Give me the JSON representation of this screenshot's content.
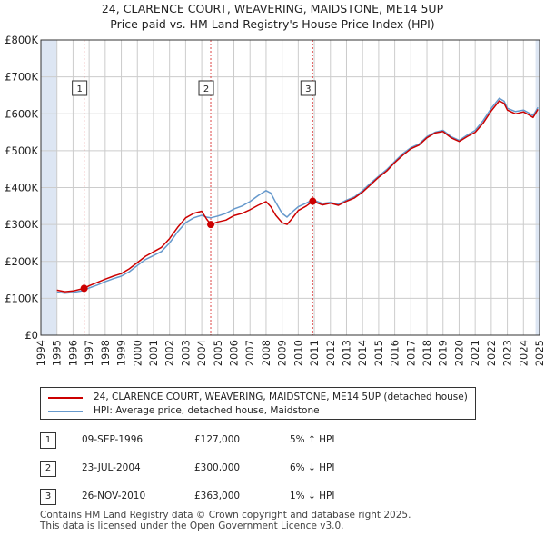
{
  "title": {
    "line1": "24, CLARENCE COURT, WEAVERING, MAIDSTONE, ME14 5UP",
    "line2": "Price paid vs. HM Land Registry's House Price Index (HPI)"
  },
  "colors": {
    "property_line": "#cc0000",
    "hpi_line": "#6699cc",
    "shade": "#dde6f3",
    "marker_line": "#dd4444",
    "grid": "#cccccc"
  },
  "legend": {
    "property_label": "24, CLARENCE COURT, WEAVERING, MAIDSTONE, ME14 5UP (detached house)",
    "hpi_label": "HPI: Average price, detached house, Maidstone"
  },
  "transactions": [
    {
      "num": "1",
      "date": "09-SEP-1996",
      "price": "£127,000",
      "hpi": "5% ↑ HPI"
    },
    {
      "num": "2",
      "date": "23-JUL-2004",
      "price": "£300,000",
      "hpi": "6% ↓ HPI"
    },
    {
      "num": "3",
      "date": "26-NOV-2010",
      "price": "£363,000",
      "hpi": "1% ↓ HPI"
    }
  ],
  "footer": {
    "line1": "Contains HM Land Registry data © Crown copyright and database right 2025.",
    "line2": "This data is licensed under the Open Government Licence v3.0."
  },
  "chart_data": {
    "type": "line",
    "title": "24, CLARENCE COURT, WEAVERING, MAIDSTONE, ME14 5UP",
    "subtitle": "Price paid vs. HM Land Registry's House Price Index (HPI)",
    "xlabel": "",
    "ylabel": "",
    "xlim": [
      1994,
      2025
    ],
    "ylim": [
      0,
      800000
    ],
    "x_ticks": [
      1994,
      1995,
      1996,
      1997,
      1998,
      1999,
      2000,
      2001,
      2002,
      2003,
      2004,
      2005,
      2006,
      2007,
      2008,
      2009,
      2010,
      2011,
      2012,
      2013,
      2014,
      2015,
      2016,
      2017,
      2018,
      2019,
      2020,
      2021,
      2022,
      2023,
      2024,
      2025
    ],
    "y_ticks": [
      {
        "value": 0,
        "label": "£0"
      },
      {
        "value": 100000,
        "label": "£100K"
      },
      {
        "value": 200000,
        "label": "£200K"
      },
      {
        "value": 300000,
        "label": "£300K"
      },
      {
        "value": 400000,
        "label": "£400K"
      },
      {
        "value": 500000,
        "label": "£500K"
      },
      {
        "value": 600000,
        "label": "£600K"
      },
      {
        "value": 700000,
        "label": "£700K"
      },
      {
        "value": 800000,
        "label": "£800K"
      }
    ],
    "grid": true,
    "legend_position": "below",
    "shaded_ranges": [
      [
        1994,
        1995
      ],
      [
        2024.75,
        2025
      ]
    ],
    "sale_markers": [
      {
        "label": "1",
        "x": 1996.69,
        "y": 127000
      },
      {
        "label": "2",
        "x": 2004.56,
        "y": 300000
      },
      {
        "label": "3",
        "x": 2010.9,
        "y": 363000
      }
    ],
    "series": [
      {
        "name": "24, CLARENCE COURT, WEAVERING, MAIDSTONE, ME14 5UP (detached house)",
        "x": [
          1995.0,
          1995.5,
          1996.0,
          1996.69,
          1997.0,
          1997.5,
          1998.0,
          1998.5,
          1999.0,
          1999.5,
          2000.0,
          2000.5,
          2001.0,
          2001.5,
          2002.0,
          2002.5,
          2003.0,
          2003.5,
          2004.0,
          2004.3,
          2004.56,
          2005.0,
          2005.5,
          2006.0,
          2006.5,
          2007.0,
          2007.5,
          2008.0,
          2008.3,
          2008.6,
          2009.0,
          2009.3,
          2009.6,
          2010.0,
          2010.5,
          2010.9,
          2011.5,
          2012.0,
          2012.5,
          2013.0,
          2013.5,
          2014.0,
          2014.5,
          2015.0,
          2015.5,
          2016.0,
          2016.5,
          2017.0,
          2017.5,
          2018.0,
          2018.5,
          2019.0,
          2019.5,
          2020.0,
          2020.5,
          2021.0,
          2021.5,
          2022.0,
          2022.5,
          2022.8,
          2023.0,
          2023.5,
          2024.0,
          2024.3,
          2024.6,
          2024.9
        ],
        "values": [
          122000,
          118000,
          120000,
          127000,
          134000,
          143000,
          152000,
          160000,
          167000,
          180000,
          197000,
          214000,
          226000,
          238000,
          262000,
          292000,
          318000,
          330000,
          336000,
          315000,
          300000,
          307000,
          312000,
          324000,
          330000,
          340000,
          352000,
          362000,
          348000,
          325000,
          305000,
          300000,
          315000,
          338000,
          350000,
          363000,
          353000,
          358000,
          352000,
          363000,
          372000,
          388000,
          408000,
          428000,
          445000,
          468000,
          488000,
          505000,
          515000,
          535000,
          548000,
          552000,
          535000,
          525000,
          538000,
          550000,
          575000,
          608000,
          635000,
          628000,
          610000,
          600000,
          605000,
          598000,
          590000,
          612000
        ]
      },
      {
        "name": "HPI: Average price, detached house, Maidstone",
        "x": [
          1995.0,
          1995.5,
          1996.0,
          1996.69,
          1997.0,
          1997.5,
          1998.0,
          1998.5,
          1999.0,
          1999.5,
          2000.0,
          2000.5,
          2001.0,
          2001.5,
          2002.0,
          2002.5,
          2003.0,
          2003.5,
          2004.0,
          2004.3,
          2004.56,
          2005.0,
          2005.5,
          2006.0,
          2006.5,
          2007.0,
          2007.5,
          2008.0,
          2008.3,
          2008.6,
          2009.0,
          2009.3,
          2009.6,
          2010.0,
          2010.5,
          2010.9,
          2011.5,
          2012.0,
          2012.5,
          2013.0,
          2013.5,
          2014.0,
          2014.5,
          2015.0,
          2015.5,
          2016.0,
          2016.5,
          2017.0,
          2017.5,
          2018.0,
          2018.5,
          2019.0,
          2019.5,
          2020.0,
          2020.5,
          2021.0,
          2021.5,
          2022.0,
          2022.5,
          2022.8,
          2023.0,
          2023.5,
          2024.0,
          2024.3,
          2024.6,
          2024.9
        ],
        "values": [
          117000,
          114000,
          116000,
          121000,
          128000,
          136000,
          145000,
          153000,
          160000,
          172000,
          189000,
          205000,
          216000,
          227000,
          250000,
          280000,
          305000,
          318000,
          325000,
          320000,
          318000,
          323000,
          330000,
          342000,
          350000,
          362000,
          378000,
          392000,
          385000,
          360000,
          330000,
          320000,
          333000,
          348000,
          358000,
          367000,
          357000,
          360000,
          355000,
          366000,
          375000,
          392000,
          412000,
          431000,
          449000,
          471000,
          492000,
          508000,
          518000,
          538000,
          550000,
          555000,
          538000,
          528000,
          542000,
          555000,
          582000,
          615000,
          642000,
          634000,
          615000,
          606000,
          610000,
          603000,
          595000,
          617000
        ]
      }
    ]
  }
}
